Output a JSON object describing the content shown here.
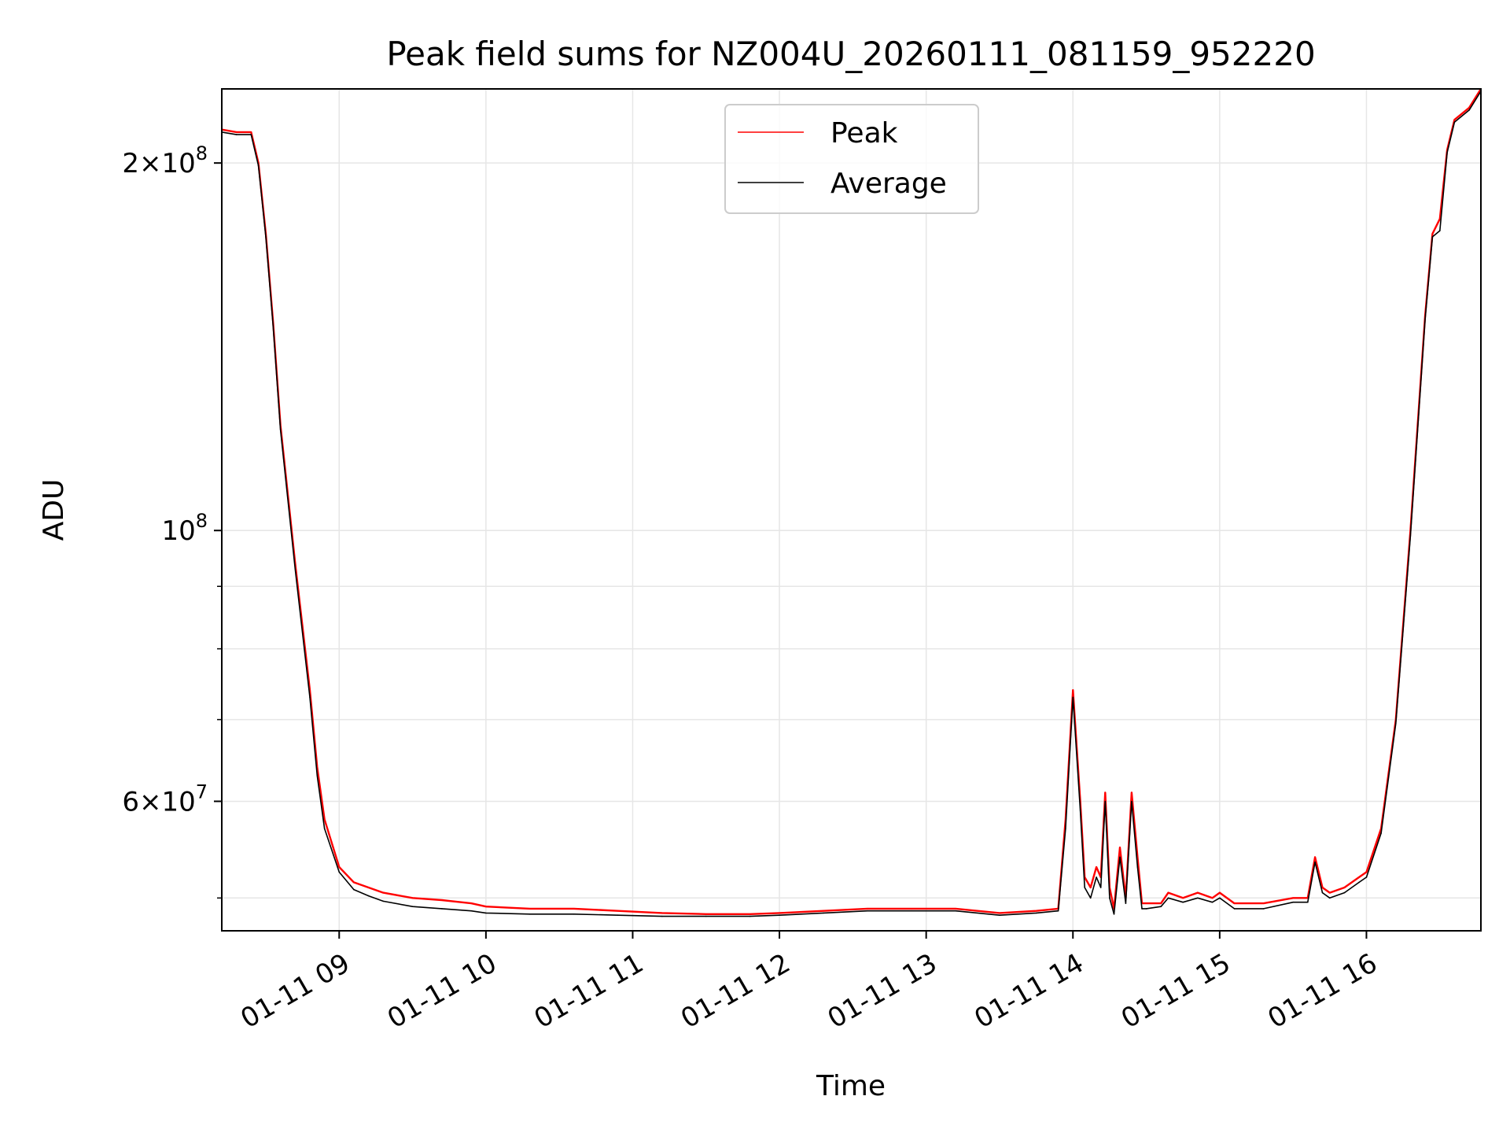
{
  "chart_data": {
    "type": "line",
    "title": "Peak field sums for NZ004U_20260111_081159_952220",
    "xlabel": "Time",
    "ylabel": "ADU",
    "yscale": "log",
    "xlim": [
      8.2,
      16.78
    ],
    "ylim": [
      47000000,
      230000000
    ],
    "grid": true,
    "legend_position": "upper-center",
    "x_ticks": [
      {
        "value": 9,
        "label": "01-11 09"
      },
      {
        "value": 10,
        "label": "01-11 10"
      },
      {
        "value": 11,
        "label": "01-11 11"
      },
      {
        "value": 12,
        "label": "01-11 12"
      },
      {
        "value": 13,
        "label": "01-11 13"
      },
      {
        "value": 14,
        "label": "01-11 14"
      },
      {
        "value": 15,
        "label": "01-11 15"
      },
      {
        "value": 16,
        "label": "01-11 16"
      }
    ],
    "y_ticks": [
      {
        "value": 200000000,
        "base": "2×10",
        "exp": "8"
      },
      {
        "value": 100000000,
        "base": "10",
        "exp": "8"
      },
      {
        "value": 60000000,
        "base": "6×10",
        "exp": "7"
      }
    ],
    "y_minor_ticks": [
      50000000,
      70000000,
      80000000,
      90000000
    ],
    "x_unit": "hour of 2026-01-11",
    "series": [
      {
        "name": "Peak",
        "color": "#ff0000",
        "x": [
          8.2,
          8.3,
          8.4,
          8.45,
          8.5,
          8.55,
          8.6,
          8.7,
          8.8,
          8.85,
          8.9,
          9.0,
          9.1,
          9.2,
          9.3,
          9.5,
          9.7,
          9.9,
          10.0,
          10.3,
          10.6,
          10.9,
          11.2,
          11.5,
          11.8,
          12.0,
          12.3,
          12.6,
          12.9,
          13.2,
          13.5,
          13.75,
          13.9,
          13.95,
          14.0,
          14.05,
          14.08,
          14.12,
          14.16,
          14.19,
          14.22,
          14.25,
          14.28,
          14.32,
          14.36,
          14.4,
          14.44,
          14.47,
          14.5,
          14.6,
          14.65,
          14.75,
          14.85,
          14.95,
          15.0,
          15.1,
          15.3,
          15.5,
          15.6,
          15.65,
          15.7,
          15.75,
          15.85,
          15.95,
          16.0,
          16.1,
          16.2,
          16.3,
          16.4,
          16.45,
          16.5,
          16.55,
          16.6,
          16.7,
          16.78
        ],
        "values": [
          213000000,
          212000000,
          212000000,
          200000000,
          175000000,
          148000000,
          122000000,
          94000000,
          74000000,
          64000000,
          58000000,
          53000000,
          51500000,
          51000000,
          50500000,
          50000000,
          49800000,
          49500000,
          49200000,
          49000000,
          49000000,
          48800000,
          48600000,
          48500000,
          48500000,
          48600000,
          48800000,
          49000000,
          49000000,
          49000000,
          48600000,
          48800000,
          49000000,
          58000000,
          74000000,
          60000000,
          52000000,
          51000000,
          53000000,
          52000000,
          61000000,
          51000000,
          49000000,
          55000000,
          50000000,
          61000000,
          54000000,
          49500000,
          49500000,
          49500000,
          50500000,
          50000000,
          50500000,
          50000000,
          50500000,
          49500000,
          49500000,
          50000000,
          50000000,
          54000000,
          51000000,
          50500000,
          51000000,
          52000000,
          52500000,
          57000000,
          70000000,
          100000000,
          150000000,
          175000000,
          180000000,
          205000000,
          217000000,
          222000000,
          230000000
        ]
      },
      {
        "name": "Average",
        "color": "#000000",
        "x": [
          8.2,
          8.3,
          8.4,
          8.45,
          8.5,
          8.55,
          8.6,
          8.7,
          8.8,
          8.85,
          8.9,
          9.0,
          9.1,
          9.2,
          9.3,
          9.5,
          9.7,
          9.9,
          10.0,
          10.3,
          10.6,
          10.9,
          11.2,
          11.5,
          11.8,
          12.0,
          12.3,
          12.6,
          12.9,
          13.2,
          13.5,
          13.75,
          13.9,
          13.95,
          14.0,
          14.05,
          14.08,
          14.12,
          14.16,
          14.19,
          14.22,
          14.25,
          14.28,
          14.32,
          14.36,
          14.4,
          14.44,
          14.47,
          14.5,
          14.6,
          14.65,
          14.75,
          14.85,
          14.95,
          15.0,
          15.1,
          15.3,
          15.5,
          15.6,
          15.65,
          15.7,
          15.75,
          15.85,
          15.95,
          16.0,
          16.1,
          16.2,
          16.3,
          16.4,
          16.45,
          16.5,
          16.55,
          16.6,
          16.7,
          16.78
        ],
        "values": [
          212000000,
          211000000,
          211000000,
          199000000,
          174000000,
          147000000,
          121000000,
          93000000,
          73000000,
          63000000,
          57000000,
          52500000,
          50800000,
          50200000,
          49700000,
          49200000,
          49000000,
          48800000,
          48600000,
          48500000,
          48500000,
          48400000,
          48300000,
          48300000,
          48300000,
          48400000,
          48600000,
          48800000,
          48800000,
          48800000,
          48400000,
          48600000,
          48800000,
          57000000,
          73000000,
          59000000,
          51000000,
          50000000,
          52000000,
          51000000,
          60000000,
          50000000,
          48500000,
          54000000,
          49500000,
          60000000,
          53000000,
          49000000,
          49000000,
          49200000,
          50000000,
          49600000,
          50000000,
          49600000,
          50000000,
          49000000,
          49000000,
          49600000,
          49600000,
          53500000,
          50500000,
          50000000,
          50500000,
          51500000,
          52000000,
          56500000,
          69500000,
          99000000,
          149000000,
          174000000,
          176000000,
          204000000,
          216000000,
          221000000,
          229000000
        ]
      }
    ]
  }
}
